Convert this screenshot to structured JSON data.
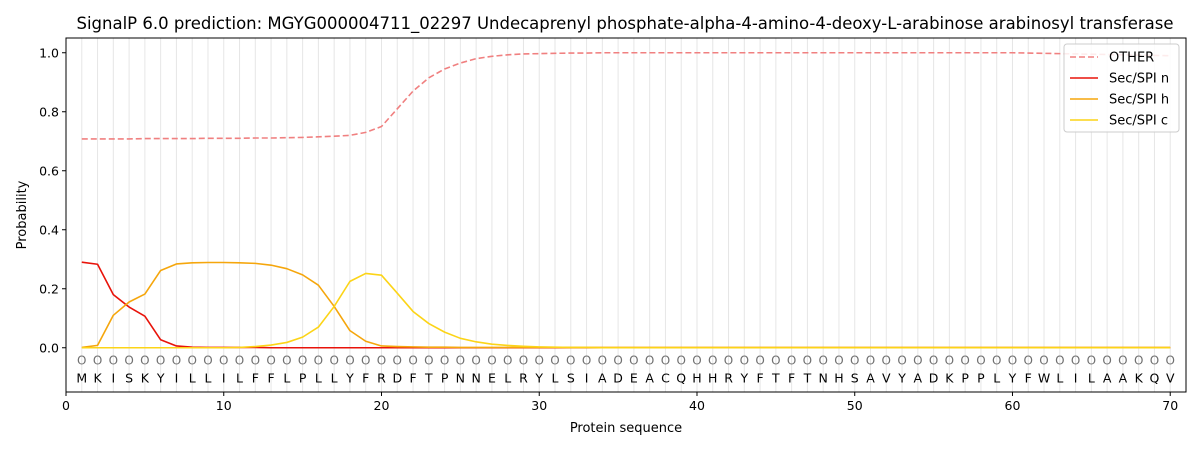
{
  "chart_data": {
    "type": "line",
    "title": "SignalP 6.0 prediction: MGYG000004711_02297 Undecaprenyl phosphate-alpha-4-amino-4-deoxy-L-arabinose arabinosyl transferase",
    "xlabel": "Protein sequence",
    "ylabel": "Probability",
    "xlim": [
      0,
      71
    ],
    "ylim": [
      -0.15,
      1.05
    ],
    "x_ticks": [
      0,
      10,
      20,
      30,
      40,
      50,
      60,
      70
    ],
    "y_ticks": [
      0.0,
      0.2,
      0.4,
      0.6,
      0.8,
      1.0
    ],
    "x_tick_labels": [
      "0",
      "10",
      "20",
      "30",
      "40",
      "50",
      "60",
      "70"
    ],
    "y_tick_labels": [
      "0.0",
      "0.2",
      "0.4",
      "0.6",
      "0.8",
      "1.0"
    ],
    "grid": "vertical lines at each residue",
    "legend_position": "top-right",
    "sequence": [
      "M",
      "K",
      "I",
      "S",
      "K",
      "Y",
      "I",
      "L",
      "L",
      "I",
      "L",
      "F",
      "F",
      "L",
      "P",
      "L",
      "L",
      "Y",
      "F",
      "R",
      "D",
      "F",
      "T",
      "P",
      "N",
      "N",
      "E",
      "L",
      "R",
      "Y",
      "L",
      "S",
      "I",
      "A",
      "D",
      "E",
      "A",
      "C",
      "Q",
      "H",
      "H",
      "R",
      "Y",
      "F",
      "T",
      "F",
      "T",
      "N",
      "H",
      "S",
      "A",
      "V",
      "Y",
      "A",
      "D",
      "K",
      "P",
      "P",
      "L",
      "Y",
      "F",
      "W",
      "L",
      "I",
      "L",
      "A",
      "A",
      "K",
      "Q",
      "V"
    ],
    "region_marker": "O",
    "x": [
      1,
      2,
      3,
      4,
      5,
      6,
      7,
      8,
      9,
      10,
      11,
      12,
      13,
      14,
      15,
      16,
      17,
      18,
      19,
      20,
      21,
      22,
      23,
      24,
      25,
      26,
      27,
      28,
      29,
      30,
      31,
      32,
      33,
      34,
      35,
      36,
      37,
      38,
      39,
      40,
      41,
      42,
      43,
      44,
      45,
      46,
      47,
      48,
      49,
      50,
      51,
      52,
      53,
      54,
      55,
      56,
      57,
      58,
      59,
      60,
      61,
      62,
      63,
      64,
      65,
      66,
      67,
      68,
      69,
      70
    ],
    "series": [
      {
        "name": "OTHER",
        "color": "#f08080",
        "dashed": true,
        "values": [
          0.708,
          0.708,
          0.708,
          0.708,
          0.709,
          0.709,
          0.709,
          0.709,
          0.71,
          0.71,
          0.71,
          0.711,
          0.711,
          0.712,
          0.713,
          0.715,
          0.717,
          0.72,
          0.73,
          0.75,
          0.81,
          0.87,
          0.915,
          0.945,
          0.965,
          0.98,
          0.988,
          0.993,
          0.996,
          0.997,
          0.998,
          0.999,
          0.999,
          1.0,
          1.0,
          1.0,
          1.0,
          1.0,
          1.0,
          1.0,
          1.0,
          1.0,
          1.0,
          1.0,
          1.0,
          1.0,
          1.0,
          1.0,
          1.0,
          1.0,
          1.0,
          1.0,
          1.0,
          1.0,
          1.0,
          1.0,
          1.0,
          1.0,
          1.0,
          1.0,
          0.999,
          0.998,
          0.997,
          0.996,
          0.995,
          0.994,
          0.993,
          0.992,
          0.991,
          0.99
        ]
      },
      {
        "name": "Sec/SPI n",
        "color": "#e8130a",
        "dashed": false,
        "values": [
          0.29,
          0.283,
          0.18,
          0.138,
          0.107,
          0.027,
          0.006,
          0.002,
          0.001,
          0.001,
          0.001,
          0.001,
          0.0,
          0.0,
          0.0,
          0.0,
          0.0,
          0.0,
          0.0,
          0.0,
          0.0,
          0.0,
          0.0,
          0.0,
          0.0,
          0.0,
          0.0,
          0.0,
          0.0,
          0.0,
          0.0,
          0.0,
          0.0,
          0.0,
          0.0,
          0.0,
          0.0,
          0.0,
          0.0,
          0.0,
          0.0,
          0.0,
          0.0,
          0.0,
          0.0,
          0.0,
          0.0,
          0.0,
          0.0,
          0.0,
          0.0,
          0.0,
          0.0,
          0.0,
          0.0,
          0.0,
          0.0,
          0.0,
          0.0,
          0.0,
          0.0,
          0.0,
          0.0,
          0.0,
          0.0,
          0.0,
          0.0,
          0.0,
          0.0,
          0.0
        ]
      },
      {
        "name": "Sec/SPI h",
        "color": "#f5a60c",
        "dashed": false,
        "values": [
          0.001,
          0.008,
          0.11,
          0.155,
          0.182,
          0.262,
          0.284,
          0.288,
          0.289,
          0.289,
          0.288,
          0.286,
          0.28,
          0.268,
          0.247,
          0.212,
          0.14,
          0.058,
          0.022,
          0.006,
          0.004,
          0.003,
          0.002,
          0.002,
          0.001,
          0.001,
          0.001,
          0.001,
          0.001,
          0.001,
          0.001,
          0.001,
          0.001,
          0.001,
          0.001,
          0.001,
          0.001,
          0.001,
          0.001,
          0.001,
          0.001,
          0.001,
          0.001,
          0.001,
          0.001,
          0.001,
          0.001,
          0.001,
          0.001,
          0.001,
          0.001,
          0.001,
          0.001,
          0.001,
          0.001,
          0.001,
          0.001,
          0.001,
          0.001,
          0.001,
          0.001,
          0.001,
          0.001,
          0.001,
          0.001,
          0.001,
          0.001,
          0.001,
          0.001,
          0.001
        ]
      },
      {
        "name": "Sec/SPI c",
        "color": "#fcd417",
        "dashed": false,
        "values": [
          0.0,
          0.0,
          0.0,
          0.0,
          0.0,
          0.0,
          0.0,
          0.0,
          0.0,
          0.0,
          0.001,
          0.004,
          0.009,
          0.018,
          0.036,
          0.07,
          0.14,
          0.225,
          0.252,
          0.246,
          0.185,
          0.123,
          0.082,
          0.053,
          0.032,
          0.02,
          0.012,
          0.008,
          0.005,
          0.003,
          0.002,
          0.001,
          0.001,
          0.0,
          0.0,
          0.0,
          0.0,
          0.0,
          0.0,
          0.0,
          0.0,
          0.0,
          0.0,
          0.0,
          0.0,
          0.0,
          0.0,
          0.0,
          0.0,
          0.0,
          0.0,
          0.0,
          0.0,
          0.0,
          0.0,
          0.0,
          0.0,
          0.0,
          0.0,
          0.0,
          0.0,
          0.0,
          0.0,
          0.0,
          0.0,
          0.0,
          0.0,
          0.0,
          0.0,
          0.0
        ]
      }
    ]
  }
}
